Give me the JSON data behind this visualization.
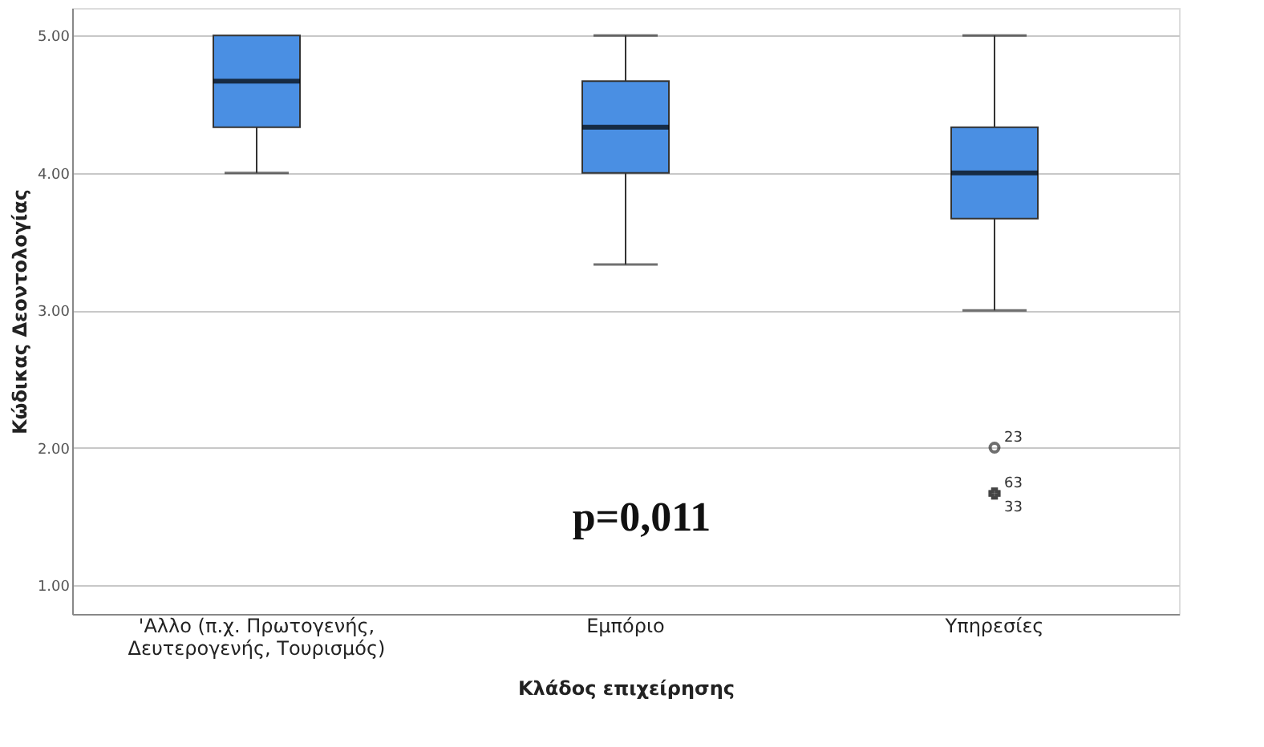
{
  "chart_data": {
    "type": "box",
    "xlabel": "Κλάδος επιχείρησης",
    "ylabel": "Κώδικας Δεοντολογίας",
    "categories": [
      "'Αλλο (π.χ. Πρωτογενής, Δευτερογενής, Τουρισμός)",
      "Εμπόριο",
      "Υπηρεσίες"
    ],
    "boxes": [
      {
        "low": 4,
        "q1": 4.333,
        "median": 4.667,
        "q3": 5,
        "high": 5
      },
      {
        "low": 3.333,
        "q1": 4,
        "median": 4.333,
        "q3": 4.667,
        "high": 5
      },
      {
        "low": 3,
        "q1": 3.667,
        "median": 4,
        "q3": 4.333,
        "high": 5,
        "outliers": [
          2,
          1.667,
          1.667
        ]
      }
    ],
    "color": "#4a8fe3",
    "ylim": [
      0.79,
      5.2
    ],
    "yticks": [
      {
        "value": 1,
        "label": "1.00"
      },
      {
        "value": 2,
        "label": "2.00"
      },
      {
        "value": 3,
        "label": "3.00"
      },
      {
        "value": 4,
        "label": "4.00"
      },
      {
        "value": 5,
        "label": "5.00"
      }
    ],
    "grid": "y",
    "legend": false,
    "annotations": [
      "p=0,011",
      "23",
      "63",
      "33"
    ]
  }
}
